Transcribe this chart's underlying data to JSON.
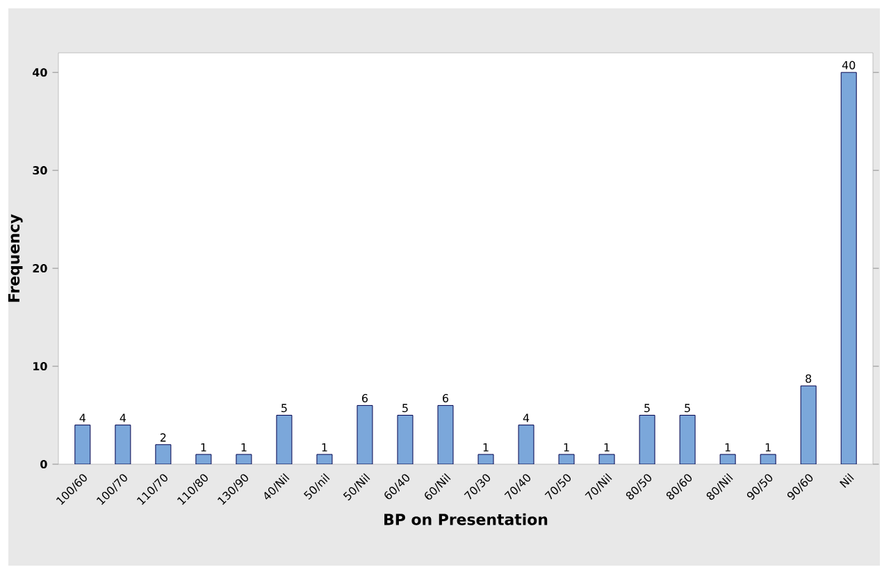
{
  "chart_data": {
    "type": "bar",
    "xlabel": "BP on Presentation",
    "ylabel": "Frequency",
    "categories": [
      "100/60",
      "100/70",
      "110/70",
      "110/80",
      "130/90",
      "40/Nil",
      "50/nil",
      "50/Nil",
      "60/40",
      "60/Nil",
      "70/30",
      "70/40",
      "70/50",
      "70/Nil",
      "80/50",
      "80/60",
      "80/Nil",
      "90/50",
      "90/60",
      "Nil"
    ],
    "values": [
      4,
      4,
      2,
      1,
      1,
      5,
      1,
      6,
      5,
      6,
      1,
      4,
      1,
      1,
      5,
      5,
      1,
      1,
      8,
      40
    ],
    "color": "#7ba7da",
    "ylim": [
      0,
      42
    ],
    "yticks": [
      0,
      10,
      20,
      30,
      40
    ],
    "data_labels": true
  }
}
